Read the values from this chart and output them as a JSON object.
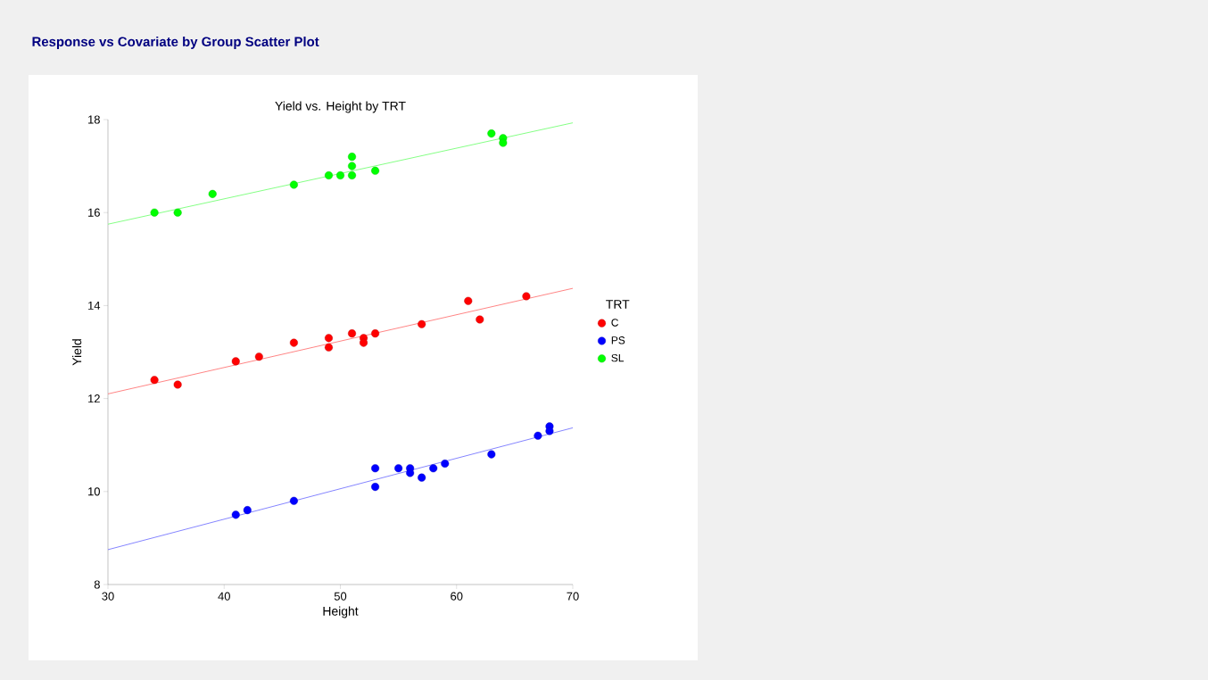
{
  "chart_data": {
    "type": "scatter",
    "title": "Response vs Covariate by Group Scatter Plot",
    "subtitle": "Yield vs. Height by TRT",
    "xlabel": "Height",
    "ylabel": "Yield",
    "legend_title": "TRT",
    "xlim": [
      30,
      70
    ],
    "xticks": [
      30,
      40,
      50,
      60,
      70
    ],
    "ylim": [
      8,
      18
    ],
    "yticks": [
      8,
      10,
      12,
      14,
      16,
      18
    ],
    "grid": false,
    "legend": "right",
    "series": [
      {
        "name": "C",
        "marker": "circle",
        "color": "#ff0000",
        "x": [
          34,
          36,
          41,
          43,
          46,
          49,
          49,
          51,
          52,
          52,
          53,
          57,
          61,
          62,
          66
        ],
        "values": [
          12.4,
          12.3,
          12.8,
          12.9,
          13.2,
          13.3,
          13.1,
          13.4,
          13.3,
          13.2,
          13.4,
          13.6,
          14.1,
          13.7,
          14.2
        ]
      },
      {
        "name": "PS",
        "marker": "circle",
        "color": "#0000ff",
        "x": [
          41,
          42,
          46,
          53,
          53,
          55,
          56,
          56,
          57,
          58,
          59,
          63,
          67,
          68,
          68
        ],
        "values": [
          9.5,
          9.6,
          9.8,
          10.5,
          10.1,
          10.5,
          10.5,
          10.4,
          10.3,
          10.5,
          10.6,
          10.8,
          11.2,
          11.4,
          11.3
        ]
      },
      {
        "name": "SL",
        "marker": "circle",
        "color": "#00ff00",
        "x": [
          34,
          36,
          39,
          46,
          49,
          50,
          51,
          51,
          51,
          53,
          63,
          64,
          64
        ],
        "values": [
          16.0,
          16.0,
          16.4,
          16.6,
          16.8,
          16.8,
          16.8,
          17.0,
          17.2,
          16.9,
          17.7,
          17.6,
          17.5
        ]
      },
      {
        "type": "line",
        "marker": "none",
        "color": "#ff6666",
        "x": [
          30,
          70
        ],
        "values": [
          12.1,
          14.37
        ]
      },
      {
        "type": "line",
        "marker": "none",
        "color": "#6666ff",
        "x": [
          30,
          70
        ],
        "values": [
          8.75,
          11.37
        ]
      },
      {
        "type": "line",
        "marker": "none",
        "color": "#66ff66",
        "x": [
          30,
          70
        ],
        "values": [
          15.75,
          17.93
        ]
      }
    ]
  }
}
